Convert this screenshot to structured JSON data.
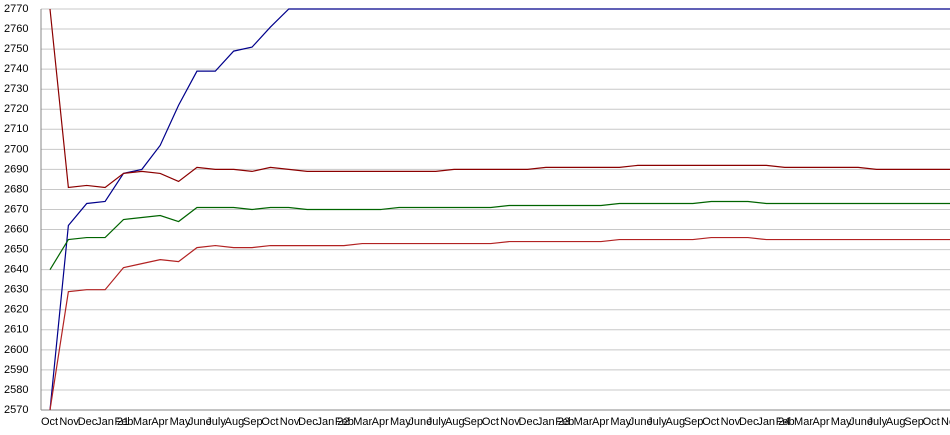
{
  "chart_data": {
    "type": "line",
    "categories": [
      "Oct",
      "Nov",
      "Dec",
      "Jan 21",
      "Feb",
      "Mar",
      "Apr",
      "May",
      "June",
      "July",
      "Aug",
      "Sep",
      "Oct",
      "Nov",
      "Dec",
      "Jan 22",
      "Feb",
      "Mar",
      "Apr",
      "May",
      "June",
      "July",
      "Aug",
      "Sep",
      "Oct",
      "Nov",
      "Dec",
      "Jan 23",
      "Feb",
      "Mar",
      "Apr",
      "May",
      "June",
      "July",
      "Aug",
      "Sep",
      "Oct",
      "Nov",
      "Dec",
      "Jan 24",
      "Feb",
      "Mar",
      "Apr",
      "May",
      "June",
      "July",
      "Aug",
      "Sep",
      "Oct",
      "Nov"
    ],
    "series": [
      {
        "color": "#00008b",
        "values": [
          2570,
          2662,
          2673,
          2674,
          2688,
          2690,
          2702,
          2722,
          2739,
          2739,
          2749,
          2751,
          2761,
          2770,
          2770,
          2770,
          2770,
          2770,
          2770,
          2770,
          2770,
          2770,
          2770,
          2770,
          2770,
          2770,
          2770,
          2770,
          2770,
          2770,
          2770,
          2770,
          2770,
          2770,
          2770,
          2770,
          2770,
          2770,
          2770,
          2770,
          2770,
          2770,
          2770,
          2770,
          2770,
          2770,
          2770,
          2770,
          2770,
          2770
        ]
      },
      {
        "color": "#8b0000",
        "values": [
          2770,
          2681,
          2682,
          2681,
          2688,
          2689,
          2688,
          2684,
          2691,
          2690,
          2690,
          2689,
          2691,
          2690,
          2689,
          2689,
          2689,
          2689,
          2689,
          2689,
          2689,
          2689,
          2690,
          2690,
          2690,
          2690,
          2690,
          2691,
          2691,
          2691,
          2691,
          2691,
          2692,
          2692,
          2692,
          2692,
          2692,
          2692,
          2692,
          2692,
          2691,
          2691,
          2691,
          2691,
          2691,
          2690,
          2690,
          2690,
          2690,
          2690
        ]
      },
      {
        "color": "#006400",
        "values": [
          2640,
          2655,
          2656,
          2656,
          2665,
          2666,
          2667,
          2664,
          2671,
          2671,
          2671,
          2670,
          2671,
          2671,
          2670,
          2670,
          2670,
          2670,
          2670,
          2671,
          2671,
          2671,
          2671,
          2671,
          2671,
          2672,
          2672,
          2672,
          2672,
          2672,
          2672,
          2673,
          2673,
          2673,
          2673,
          2673,
          2674,
          2674,
          2674,
          2673,
          2673,
          2673,
          2673,
          2673,
          2673,
          2673,
          2673,
          2673,
          2673,
          2673
        ]
      },
      {
        "color": "#b22222",
        "values": [
          2570,
          2629,
          2630,
          2630,
          2641,
          2643,
          2645,
          2644,
          2651,
          2652,
          2651,
          2651,
          2652,
          2652,
          2652,
          2652,
          2652,
          2653,
          2653,
          2653,
          2653,
          2653,
          2653,
          2653,
          2653,
          2654,
          2654,
          2654,
          2654,
          2654,
          2654,
          2655,
          2655,
          2655,
          2655,
          2655,
          2656,
          2656,
          2656,
          2655,
          2655,
          2655,
          2655,
          2655,
          2655,
          2655,
          2655,
          2655,
          2655,
          2655
        ]
      }
    ],
    "ylim": [
      2570,
      2770
    ],
    "yticks": [
      2570,
      2580,
      2590,
      2600,
      2610,
      2620,
      2630,
      2640,
      2650,
      2660,
      2670,
      2680,
      2690,
      2700,
      2710,
      2720,
      2730,
      2740,
      2750,
      2760,
      2770
    ],
    "grid": true
  }
}
